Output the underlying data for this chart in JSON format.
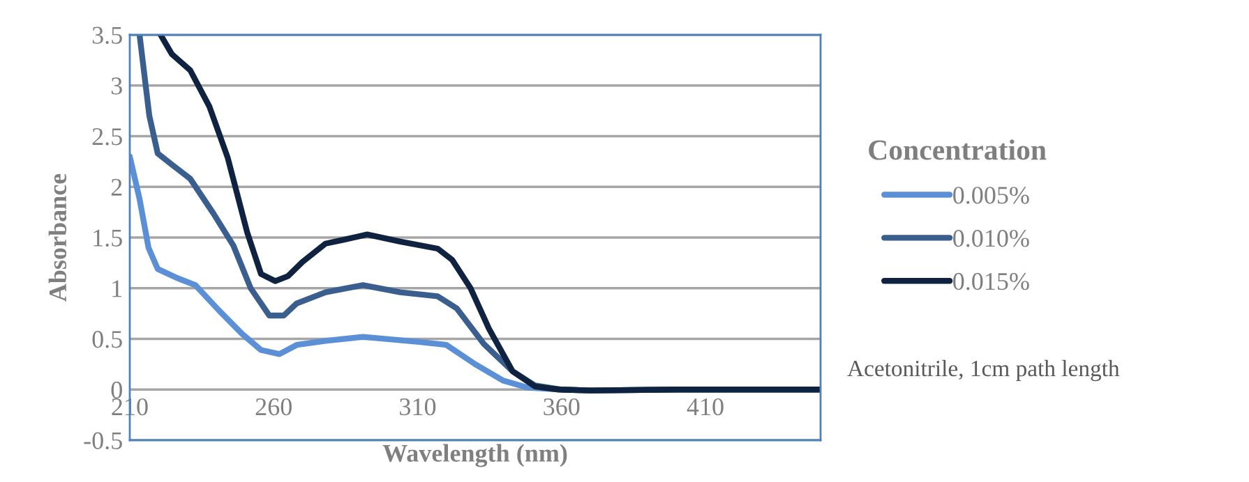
{
  "chart_data": {
    "type": "line",
    "xlabel": "Wavelength (nm)",
    "ylabel": "Absorbance",
    "legend_title": "Concentration",
    "annotations": [
      "Acetonitrile, 1cm path length"
    ],
    "xlim": [
      210,
      450
    ],
    "xticks": [
      210,
      260,
      310,
      360,
      410
    ],
    "ylim": [
      -0.5,
      3.5
    ],
    "yticks": [
      -0.5,
      0,
      0.5,
      1,
      1.5,
      2,
      2.5,
      3,
      3.5
    ],
    "grid": "y",
    "legend": "right",
    "marker": "none",
    "line_style": "solid",
    "series": [
      {
        "name": "0.005%",
        "color": "#5b8fd6",
        "x": [
          210,
          213.4,
          216.5,
          219.7,
          226.5,
          232.8,
          241,
          249,
          255.6,
          262,
          268,
          278,
          291,
          310.5,
          320,
          330,
          339.6,
          348,
          360,
          370,
          400,
          450
        ],
        "values": [
          2.3,
          1.88,
          1.4,
          1.19,
          1.1,
          1.03,
          0.78,
          0.55,
          0.39,
          0.35,
          0.44,
          0.48,
          0.52,
          0.47,
          0.44,
          0.25,
          0.09,
          0.02,
          0,
          -0.01,
          0,
          0
        ]
      },
      {
        "name": "0.010%",
        "color": "#3a5f8f",
        "x": [
          213.4,
          216.8,
          219.7,
          224.6,
          231,
          239,
          246,
          252,
          258.5,
          263.5,
          268,
          278,
          291,
          304,
          317,
          323.6,
          333,
          343,
          350.8,
          360,
          370,
          400,
          450
        ],
        "values": [
          3.5,
          2.7,
          2.33,
          2.22,
          2.08,
          1.74,
          1.42,
          1.0,
          0.73,
          0.73,
          0.85,
          0.96,
          1.03,
          0.96,
          0.92,
          0.8,
          0.45,
          0.18,
          0.04,
          0,
          -0.01,
          0,
          0
        ]
      },
      {
        "name": "0.015%",
        "color": "#0f2340",
        "x": [
          220.7,
          224.6,
          231,
          237.7,
          244,
          250.8,
          255.6,
          260.5,
          265,
          270,
          278,
          284.7,
          292.5,
          304,
          317,
          322,
          328.4,
          334.8,
          343,
          350.8,
          359,
          370,
          400,
          450
        ],
        "values": [
          3.5,
          3.31,
          3.15,
          2.79,
          2.29,
          1.55,
          1.14,
          1.07,
          1.12,
          1.26,
          1.44,
          1.48,
          1.53,
          1.46,
          1.39,
          1.28,
          1.0,
          0.6,
          0.18,
          0.03,
          0,
          -0.01,
          0,
          0
        ]
      }
    ]
  }
}
